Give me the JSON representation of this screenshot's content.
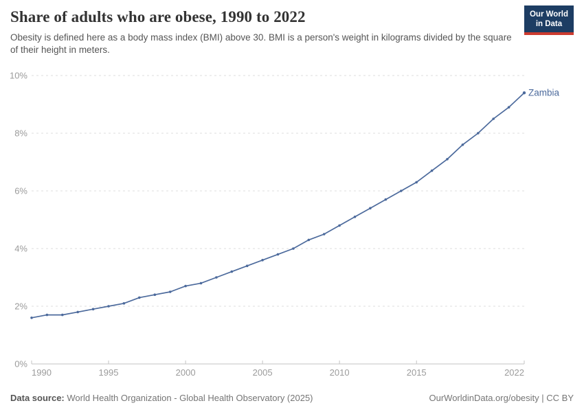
{
  "header": {
    "title": "Share of adults who are obese, 1990 to 2022",
    "subtitle": "Obesity is defined here as a body mass index (BMI) above 30. BMI is a person's weight in kilograms divided by the square of their height in meters."
  },
  "logo": {
    "line1": "Our World",
    "line2": "in Data"
  },
  "chart_data": {
    "type": "line",
    "title": "Share of adults who are obese, 1990 to 2022",
    "x": [
      1990,
      1991,
      1992,
      1993,
      1994,
      1995,
      1996,
      1997,
      1998,
      1999,
      2000,
      2001,
      2002,
      2003,
      2004,
      2005,
      2006,
      2007,
      2008,
      2009,
      2010,
      2011,
      2012,
      2013,
      2014,
      2015,
      2016,
      2017,
      2018,
      2019,
      2020,
      2021,
      2022
    ],
    "series": [
      {
        "name": "Zambia",
        "values": [
          1.6,
          1.7,
          1.7,
          1.8,
          1.9,
          2.0,
          2.1,
          2.3,
          2.4,
          2.5,
          2.7,
          2.8,
          3.0,
          3.2,
          3.4,
          3.6,
          3.8,
          4.0,
          4.3,
          4.5,
          4.8,
          5.1,
          5.4,
          5.7,
          6.0,
          6.3,
          6.7,
          7.1,
          7.6,
          8.0,
          8.5,
          8.9,
          9.4
        ]
      }
    ],
    "xlabel": "",
    "ylabel": "",
    "ylim": [
      0,
      10
    ],
    "yticks": [
      0,
      2,
      4,
      6,
      8,
      10
    ],
    "ytick_suffix": "%",
    "xticks": [
      1990,
      1995,
      2000,
      2005,
      2010,
      2015,
      2022
    ],
    "grid": "horizontal-dashed",
    "legend_position": "end-of-line-label",
    "marker": "point"
  },
  "colors": {
    "line": "#4c6a9c",
    "logo_background": "#1d3d63",
    "logo_red": "#cc3b2f",
    "grid": "#dddddd",
    "axis_text": "#9b9b9b"
  },
  "footer": {
    "source_label": "Data source:",
    "source_text": " World Health Organization - Global Health Observatory (2025)",
    "url": "OurWorldinData.org/obesity",
    "separator": " | ",
    "license": "CC BY"
  }
}
